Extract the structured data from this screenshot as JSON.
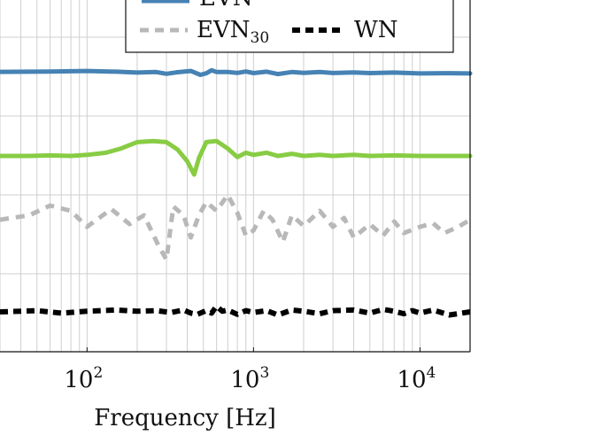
{
  "chart_data": {
    "type": "line",
    "xlabel": "Frequency [Hz]",
    "x_scale": "log",
    "x_ticks": [
      {
        "value": 100,
        "base": "10",
        "exp": "2"
      },
      {
        "value": 1000,
        "base": "10",
        "exp": "3"
      },
      {
        "value": 10000,
        "base": "10",
        "exp": "4"
      }
    ],
    "xlim": [
      30,
      20000
    ],
    "ylabel": "",
    "y_ticks_visible": false,
    "grid": true,
    "legend": {
      "placement": "top-center",
      "entries": [
        {
          "name": "EVN",
          "sub": "30",
          "color": "#b8b8b8",
          "dash": "dashed"
        },
        {
          "name": "WN",
          "sub": "",
          "color": "#000000",
          "dash": "dashed"
        }
      ]
    },
    "series": [
      {
        "color": "#4682b4",
        "style": "solid",
        "x": [
          30,
          60,
          100,
          150,
          200,
          260,
          300,
          350,
          420,
          480,
          520,
          560,
          600,
          700,
          800,
          900,
          1000,
          1200,
          1400,
          1700,
          2000,
          2500,
          3000,
          4000,
          5000,
          7000,
          10000,
          14000,
          20000
        ],
        "y": [
          0.82,
          0.88,
          0.98,
          0.85,
          0.68,
          0.78,
          0.45,
          0.75,
          0.98,
          0.25,
          0.55,
          1.12,
          0.78,
          0.8,
          0.62,
          0.88,
          0.58,
          0.85,
          0.4,
          0.78,
          0.62,
          0.8,
          0.6,
          0.72,
          0.58,
          0.68,
          0.52,
          0.56,
          0.52
        ]
      },
      {
        "color": "#88cc44",
        "style": "solid",
        "x": [
          30,
          45,
          60,
          80,
          100,
          130,
          160,
          200,
          250,
          300,
          350,
          400,
          440,
          470,
          520,
          600,
          700,
          800,
          900,
          1000,
          1200,
          1400,
          1700,
          2000,
          2500,
          3000,
          4000,
          5000,
          7000,
          10000,
          14000,
          20000
        ],
        "y": [
          0.0,
          0.0,
          0.05,
          0.0,
          0.1,
          0.3,
          0.7,
          1.3,
          1.4,
          1.3,
          0.6,
          -0.5,
          -1.75,
          -0.2,
          1.3,
          1.4,
          0.7,
          -0.1,
          0.3,
          0.1,
          0.3,
          0.0,
          0.2,
          0.0,
          0.1,
          0.0,
          0.1,
          0.0,
          0.05,
          0.0,
          0.0,
          0.0
        ]
      },
      {
        "color": "#b8b8b8",
        "style": "dashed",
        "x": [
          30,
          45,
          60,
          80,
          100,
          140,
          180,
          220,
          270,
          300,
          330,
          380,
          420,
          470,
          520,
          600,
          700,
          800,
          900,
          1000,
          1150,
          1300,
          1500,
          1700,
          2000,
          2500,
          3000,
          3500,
          4000,
          5000,
          6000,
          7000,
          8000,
          10000,
          12000,
          14000,
          17000,
          20000
        ],
        "y": [
          1.0,
          1.5,
          2.6,
          2.0,
          0.2,
          2.2,
          0.5,
          1.5,
          -2.0,
          -3.5,
          2.5,
          1.5,
          -1.0,
          1.5,
          3.0,
          2.0,
          3.8,
          1.8,
          -0.8,
          -0.2,
          2.0,
          1.0,
          -1.5,
          1.5,
          0.3,
          2.0,
          0.2,
          1.2,
          -1.0,
          0.5,
          -0.8,
          0.8,
          -0.5,
          0.2,
          0.6,
          -0.5,
          0.2,
          1.0
        ]
      },
      {
        "color": "#000000",
        "style": "dashed",
        "x": [
          30,
          50,
          70,
          100,
          150,
          200,
          260,
          320,
          380,
          420,
          460,
          520,
          560,
          600,
          650,
          700,
          800,
          900,
          1000,
          1200,
          1400,
          1700,
          2000,
          2500,
          3000,
          4000,
          5000,
          6000,
          7000,
          8000,
          9000,
          10000,
          12000,
          15000,
          20000
        ],
        "y": [
          0.0,
          0.2,
          -0.2,
          0.1,
          0.3,
          0.1,
          0.2,
          -0.1,
          0.3,
          -0.2,
          -0.4,
          0.2,
          -0.2,
          0.9,
          0.1,
          0.3,
          -0.4,
          0.2,
          -0.1,
          0.2,
          -0.5,
          0.3,
          0.1,
          -0.3,
          0.2,
          0.3,
          -0.2,
          0.4,
          0.1,
          -0.3,
          0.2,
          -0.2,
          0.3,
          -0.5,
          0.0
        ]
      }
    ]
  }
}
